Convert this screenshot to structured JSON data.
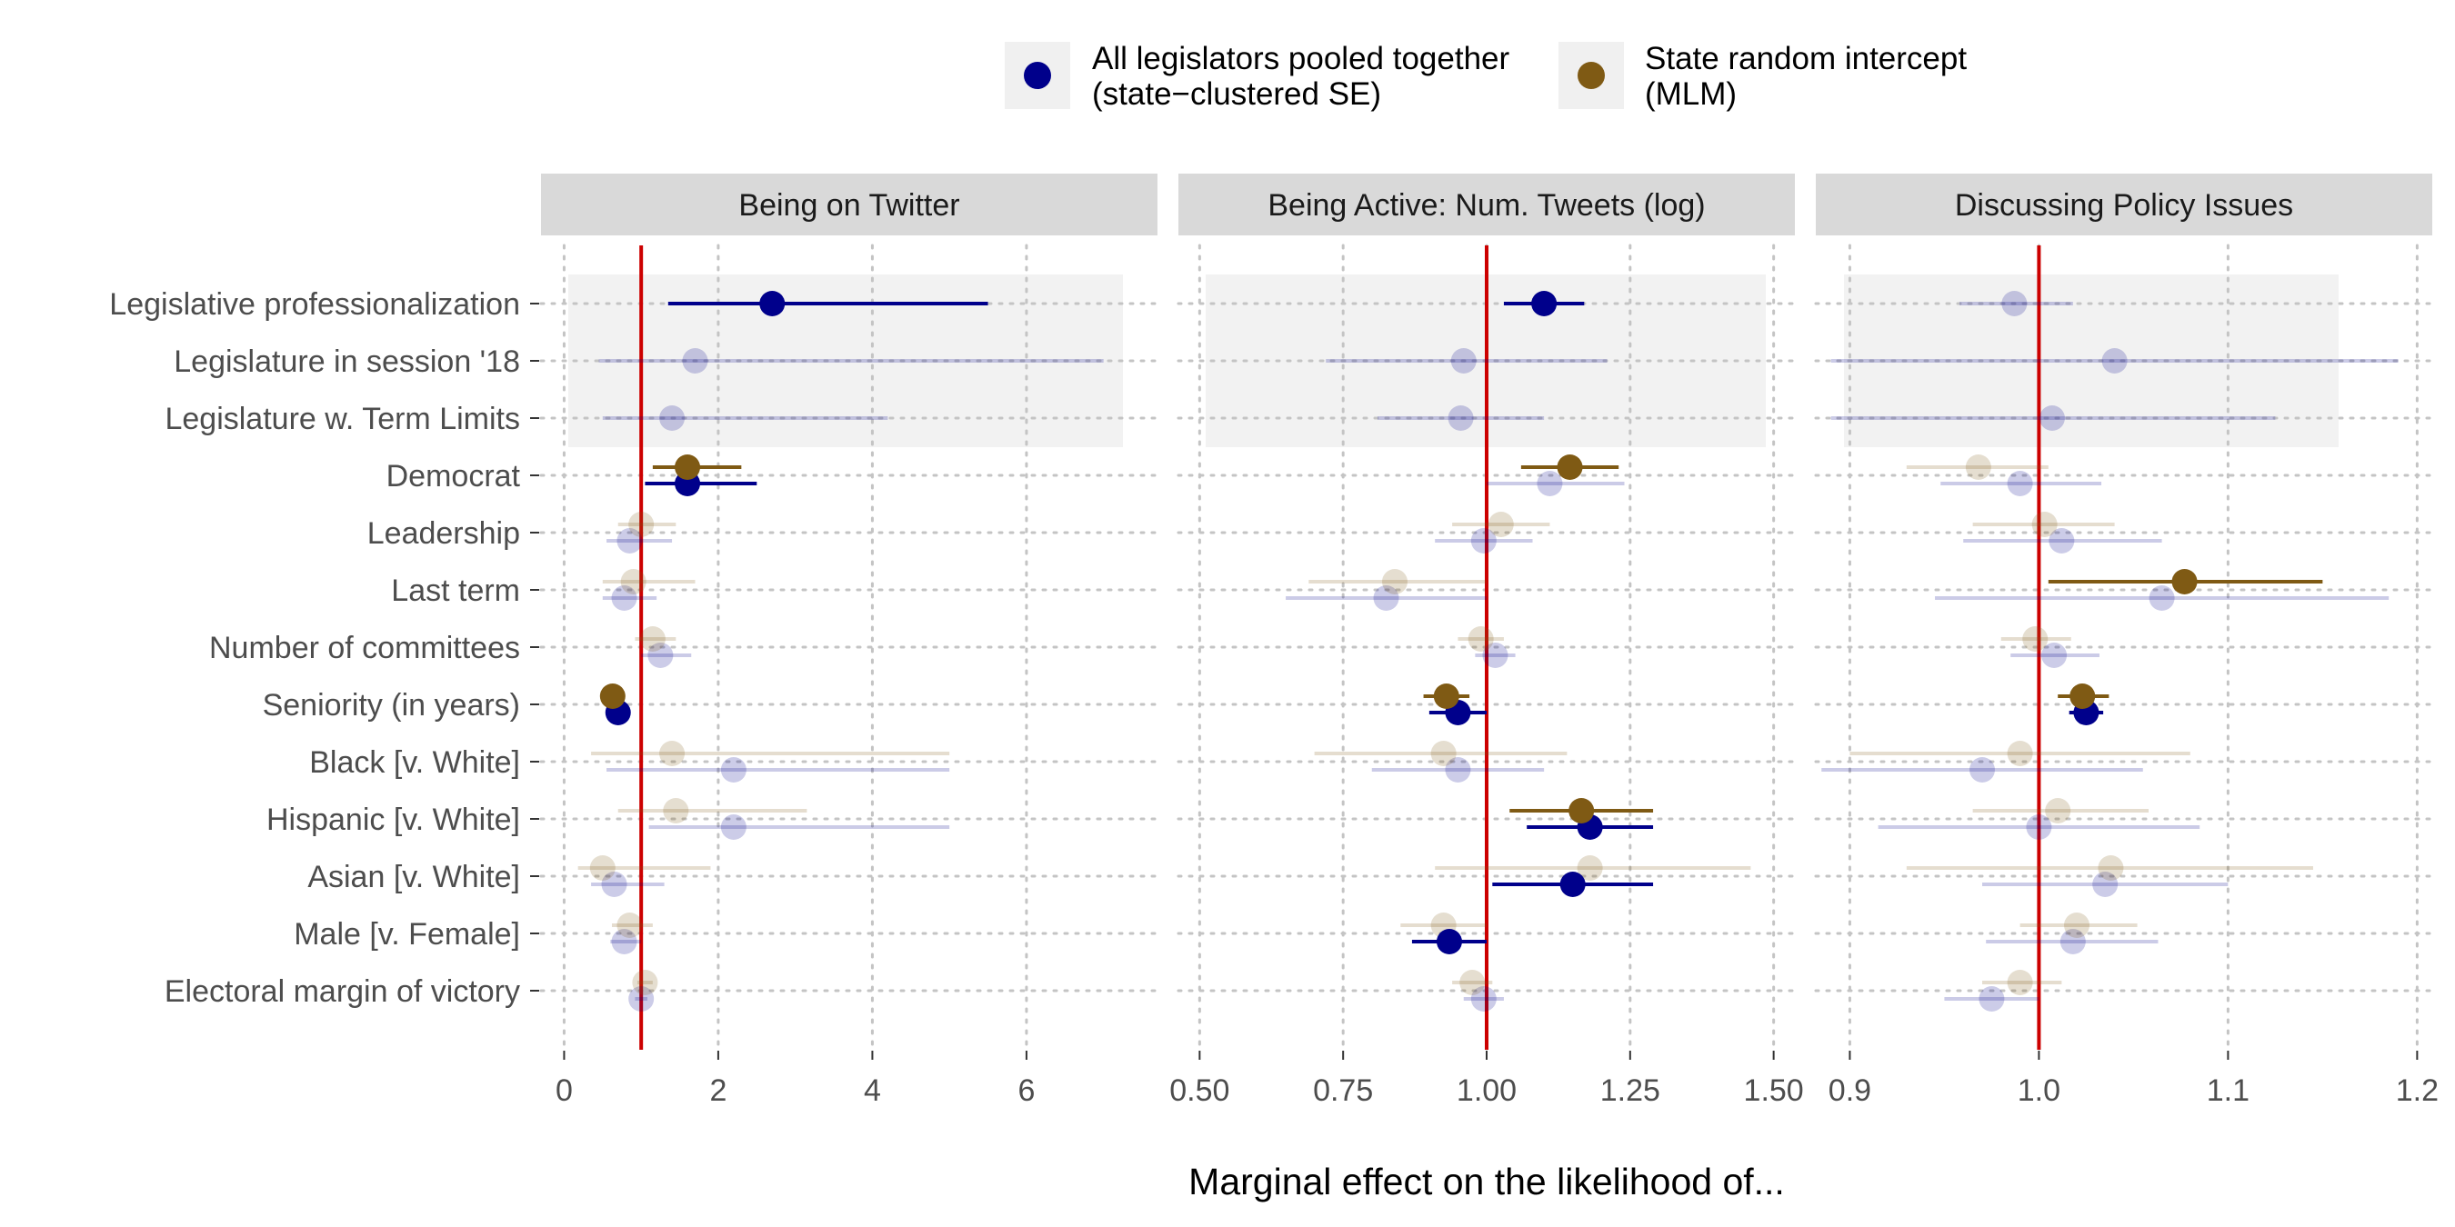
{
  "legend": {
    "items": [
      {
        "line1": "All legislators pooled together",
        "line2": "(state−clustered SE)",
        "color": "#00008B"
      },
      {
        "line1": "State random intercept",
        "line2": "(MLM)",
        "color": "#7F5A14"
      }
    ]
  },
  "xlabel": "Marginal effect on the likelihood of...",
  "categories": [
    "Legislative professionalization",
    "Legislature in session '18",
    "Legislature w. Term Limits",
    "Democrat",
    "Leadership",
    "Last term",
    "Number of committees",
    "Seniority (in years)",
    "Black [v. White]",
    "Hispanic [v. White]",
    "Asian [v. White]",
    "Male [v. Female]",
    "Electoral margin of victory"
  ],
  "chart_data": [
    {
      "type": "forest",
      "title": "Being on Twitter",
      "xlim": [
        -0.3,
        7.7
      ],
      "ticks": [
        0,
        2,
        4,
        6
      ],
      "tick_labels": [
        "0",
        "2",
        "4",
        "6"
      ],
      "ref_line": 1,
      "series": [
        {
          "name": "All legislators pooled together (state−clustered SE)",
          "points": [
            {
              "est": 2.7,
              "lo": 1.35,
              "hi": 5.5,
              "sig": true
            },
            {
              "est": 1.7,
              "lo": 0.45,
              "hi": 7.0,
              "sig": false
            },
            {
              "est": 1.4,
              "lo": 0.5,
              "hi": 4.2,
              "sig": false
            },
            {
              "est": 1.6,
              "lo": 1.05,
              "hi": 2.5,
              "sig": true
            },
            {
              "est": 0.85,
              "lo": 0.55,
              "hi": 1.4,
              "sig": false
            },
            {
              "est": 0.78,
              "lo": 0.5,
              "hi": 1.2,
              "sig": false
            },
            {
              "est": 1.25,
              "lo": 1.0,
              "hi": 1.65,
              "sig": false
            },
            {
              "est": 0.7,
              "lo": 0.58,
              "hi": 0.85,
              "sig": true
            },
            {
              "est": 2.2,
              "lo": 0.55,
              "hi": 5.0,
              "sig": false
            },
            {
              "est": 2.2,
              "lo": 1.1,
              "hi": 5.0,
              "sig": false
            },
            {
              "est": 0.65,
              "lo": 0.35,
              "hi": 1.3,
              "sig": false
            },
            {
              "est": 0.78,
              "lo": 0.6,
              "hi": 1.0,
              "sig": false
            },
            {
              "est": 1.0,
              "lo": 0.92,
              "hi": 1.08,
              "sig": false
            }
          ]
        },
        {
          "name": "State random intercept (MLM)",
          "points": [
            null,
            null,
            null,
            {
              "est": 1.6,
              "lo": 1.15,
              "hi": 2.3,
              "sig": true
            },
            {
              "est": 1.0,
              "lo": 0.7,
              "hi": 1.45,
              "sig": false
            },
            {
              "est": 0.9,
              "lo": 0.5,
              "hi": 1.7,
              "sig": false
            },
            {
              "est": 1.15,
              "lo": 0.92,
              "hi": 1.45,
              "sig": false
            },
            {
              "est": 0.63,
              "lo": 0.52,
              "hi": 0.75,
              "sig": true
            },
            {
              "est": 1.4,
              "lo": 0.35,
              "hi": 5.0,
              "sig": false
            },
            {
              "est": 1.45,
              "lo": 0.7,
              "hi": 3.15,
              "sig": false
            },
            {
              "est": 0.5,
              "lo": 0.18,
              "hi": 1.9,
              "sig": false
            },
            {
              "est": 0.85,
              "lo": 0.62,
              "hi": 1.15,
              "sig": false
            },
            {
              "est": 1.05,
              "lo": 0.95,
              "hi": 1.15,
              "sig": false
            }
          ]
        }
      ]
    },
    {
      "type": "forest",
      "title": "Being Active: Num. Tweets (log)",
      "xlim": [
        0.463,
        1.537
      ],
      "ticks": [
        0.5,
        0.75,
        1.0,
        1.25,
        1.5
      ],
      "tick_labels": [
        "0.50",
        "0.75",
        "1.00",
        "1.25",
        "1.50"
      ],
      "ref_line": 1,
      "series": [
        {
          "name": "All legislators pooled together (state−clustered SE)",
          "points": [
            {
              "est": 1.1,
              "lo": 1.03,
              "hi": 1.17,
              "sig": true
            },
            {
              "est": 0.96,
              "lo": 0.72,
              "hi": 1.21,
              "sig": false
            },
            {
              "est": 0.955,
              "lo": 0.81,
              "hi": 1.1,
              "sig": false
            },
            {
              "est": 1.11,
              "lo": 1.0,
              "hi": 1.24,
              "sig": false
            },
            {
              "est": 0.995,
              "lo": 0.91,
              "hi": 1.08,
              "sig": false
            },
            {
              "est": 0.825,
              "lo": 0.65,
              "hi": 1.0,
              "sig": false
            },
            {
              "est": 1.015,
              "lo": 0.98,
              "hi": 1.05,
              "sig": false
            },
            {
              "est": 0.95,
              "lo": 0.9,
              "hi": 1.0,
              "sig": true
            },
            {
              "est": 0.95,
              "lo": 0.8,
              "hi": 1.1,
              "sig": false
            },
            {
              "est": 1.18,
              "lo": 1.07,
              "hi": 1.29,
              "sig": true
            },
            {
              "est": 1.15,
              "lo": 1.01,
              "hi": 1.29,
              "sig": true
            },
            {
              "est": 0.935,
              "lo": 0.87,
              "hi": 1.0,
              "sig": true
            },
            {
              "est": 0.995,
              "lo": 0.96,
              "hi": 1.03,
              "sig": false
            }
          ]
        },
        {
          "name": "State random intercept (MLM)",
          "points": [
            null,
            null,
            null,
            {
              "est": 1.145,
              "lo": 1.06,
              "hi": 1.23,
              "sig": true
            },
            {
              "est": 1.025,
              "lo": 0.94,
              "hi": 1.11,
              "sig": false
            },
            {
              "est": 0.84,
              "lo": 0.69,
              "hi": 1.0,
              "sig": false
            },
            {
              "est": 0.99,
              "lo": 0.95,
              "hi": 1.03,
              "sig": false
            },
            {
              "est": 0.93,
              "lo": 0.89,
              "hi": 0.97,
              "sig": true
            },
            {
              "est": 0.925,
              "lo": 0.7,
              "hi": 1.14,
              "sig": false
            },
            {
              "est": 1.165,
              "lo": 1.04,
              "hi": 1.29,
              "sig": true
            },
            {
              "est": 1.18,
              "lo": 0.91,
              "hi": 1.46,
              "sig": false
            },
            {
              "est": 0.925,
              "lo": 0.85,
              "hi": 1.0,
              "sig": false
            },
            {
              "est": 0.975,
              "lo": 0.94,
              "hi": 1.01,
              "sig": false
            }
          ]
        }
      ]
    },
    {
      "type": "forest",
      "title": "Discussing Policy Issues",
      "xlim": [
        0.882,
        1.208
      ],
      "ticks": [
        0.9,
        1.0,
        1.1,
        1.2
      ],
      "tick_labels": [
        "0.9",
        "1.0",
        "1.1",
        "1.2"
      ],
      "ref_line": 1,
      "series": [
        {
          "name": "All legislators pooled together (state−clustered SE)",
          "points": [
            {
              "est": 0.987,
              "lo": 0.958,
              "hi": 1.018,
              "sig": false
            },
            {
              "est": 1.04,
              "lo": 0.89,
              "hi": 1.19,
              "sig": false
            },
            {
              "est": 1.007,
              "lo": 0.89,
              "hi": 1.125,
              "sig": false
            },
            {
              "est": 0.99,
              "lo": 0.948,
              "hi": 1.033,
              "sig": false
            },
            {
              "est": 1.012,
              "lo": 0.96,
              "hi": 1.065,
              "sig": false
            },
            {
              "est": 1.065,
              "lo": 0.945,
              "hi": 1.185,
              "sig": false
            },
            {
              "est": 1.008,
              "lo": 0.985,
              "hi": 1.032,
              "sig": false
            },
            {
              "est": 1.025,
              "lo": 1.016,
              "hi": 1.034,
              "sig": true
            },
            {
              "est": 0.97,
              "lo": 0.885,
              "hi": 1.055,
              "sig": false
            },
            {
              "est": 1.0,
              "lo": 0.915,
              "hi": 1.085,
              "sig": false
            },
            {
              "est": 1.035,
              "lo": 0.97,
              "hi": 1.1,
              "sig": false
            },
            {
              "est": 1.018,
              "lo": 0.972,
              "hi": 1.063,
              "sig": false
            },
            {
              "est": 0.975,
              "lo": 0.95,
              "hi": 1.0,
              "sig": false
            }
          ]
        },
        {
          "name": "State random intercept (MLM)",
          "points": [
            null,
            null,
            null,
            {
              "est": 0.968,
              "lo": 0.93,
              "hi": 1.005,
              "sig": false
            },
            {
              "est": 1.003,
              "lo": 0.965,
              "hi": 1.04,
              "sig": false
            },
            {
              "est": 1.077,
              "lo": 1.005,
              "hi": 1.15,
              "sig": true
            },
            {
              "est": 0.998,
              "lo": 0.98,
              "hi": 1.017,
              "sig": false
            },
            {
              "est": 1.023,
              "lo": 1.01,
              "hi": 1.037,
              "sig": true
            },
            {
              "est": 0.99,
              "lo": 0.9,
              "hi": 1.08,
              "sig": false
            },
            {
              "est": 1.01,
              "lo": 0.965,
              "hi": 1.058,
              "sig": false
            },
            {
              "est": 1.038,
              "lo": 0.93,
              "hi": 1.145,
              "sig": false
            },
            {
              "est": 1.02,
              "lo": 0.99,
              "hi": 1.052,
              "sig": false
            },
            {
              "est": 0.99,
              "lo": 0.97,
              "hi": 1.012,
              "sig": false
            }
          ]
        }
      ]
    }
  ]
}
